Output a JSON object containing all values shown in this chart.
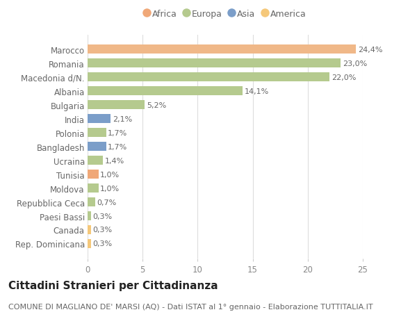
{
  "categories": [
    "Rep. Dominicana",
    "Canada",
    "Paesi Bassi",
    "Repubblica Ceca",
    "Moldova",
    "Tunisia",
    "Ucraina",
    "Bangladesh",
    "Polonia",
    "India",
    "Bulgaria",
    "Albania",
    "Macedonia d/N.",
    "Romania",
    "Marocco"
  ],
  "values": [
    0.3,
    0.3,
    0.3,
    0.7,
    1.0,
    1.0,
    1.4,
    1.7,
    1.7,
    2.1,
    5.2,
    14.1,
    22.0,
    23.0,
    24.4
  ],
  "labels": [
    "0,3%",
    "0,3%",
    "0,3%",
    "0,7%",
    "1,0%",
    "1,0%",
    "1,4%",
    "1,7%",
    "1,7%",
    "2,1%",
    "5,2%",
    "14,1%",
    "22,0%",
    "23,0%",
    "24,4%"
  ],
  "colors": [
    "#f5c87a",
    "#f5c87a",
    "#b5ca8e",
    "#b5ca8e",
    "#b5ca8e",
    "#f0a878",
    "#b5ca8e",
    "#7b9ec9",
    "#b5ca8e",
    "#7b9ec9",
    "#b5ca8e",
    "#b5ca8e",
    "#b5ca8e",
    "#b5ca8e",
    "#f0b888"
  ],
  "legend_labels": [
    "Africa",
    "Europa",
    "Asia",
    "America"
  ],
  "legend_colors": [
    "#f0a878",
    "#b5ca8e",
    "#7b9ec9",
    "#f5c87a"
  ],
  "title": "Cittadini Stranieri per Cittadinanza",
  "subtitle": "COMUNE DI MAGLIANO DE' MARSI (AQ) - Dati ISTAT al 1° gennaio - Elaborazione TUTTITALIA.IT",
  "xlim": [
    0,
    25
  ],
  "xticks": [
    0,
    5,
    10,
    15,
    20,
    25
  ],
  "background_color": "#ffffff",
  "plot_bg_color": "#ffffff",
  "bar_height": 0.65,
  "title_fontsize": 11,
  "subtitle_fontsize": 8,
  "label_fontsize": 8,
  "tick_fontsize": 8.5,
  "legend_fontsize": 9
}
